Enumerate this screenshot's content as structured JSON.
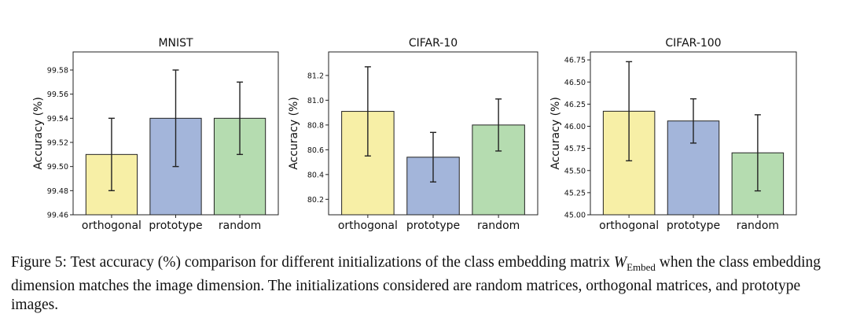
{
  "chart_data": [
    {
      "type": "bar",
      "title": "MNIST",
      "ylabel": "Accuracy (%)",
      "categories": [
        "orthogonal",
        "prototype",
        "random"
      ],
      "values": [
        99.51,
        99.54,
        99.54
      ],
      "errors": [
        0.03,
        0.04,
        0.03
      ],
      "ylim": [
        99.46,
        99.595
      ],
      "yticks": [
        99.46,
        99.48,
        99.5,
        99.52,
        99.54,
        99.56,
        99.58
      ],
      "tick_labels": [
        "99.46",
        "99.48",
        "99.50",
        "99.52",
        "99.54",
        "99.56",
        "99.58"
      ]
    },
    {
      "type": "bar",
      "title": "CIFAR-10",
      "ylabel": "Accuracy (%)",
      "categories": [
        "orthogonal",
        "prototype",
        "random"
      ],
      "values": [
        80.91,
        80.54,
        80.8
      ],
      "errors": [
        0.36,
        0.2,
        0.21
      ],
      "ylim": [
        80.075,
        81.39
      ],
      "yticks": [
        80.2,
        80.4,
        80.6,
        80.8,
        81.0,
        81.2
      ],
      "tick_labels": [
        "80.2",
        "80.4",
        "80.6",
        "80.8",
        "81.0",
        "81.2"
      ]
    },
    {
      "type": "bar",
      "title": "CIFAR-100",
      "ylabel": "Accuracy (%)",
      "categories": [
        "orthogonal",
        "prototype",
        "random"
      ],
      "values": [
        46.17,
        46.06,
        45.7
      ],
      "errors": [
        0.56,
        0.25,
        0.43
      ],
      "ylim": [
        45.0,
        46.84
      ],
      "yticks": [
        45.0,
        45.25,
        45.5,
        45.75,
        46.0,
        46.25,
        46.5,
        46.75
      ],
      "tick_labels": [
        "45.00",
        "45.25",
        "45.50",
        "45.75",
        "46.00",
        "46.25",
        "46.50",
        "46.75"
      ]
    }
  ],
  "colors": {
    "orthogonal": "#f7efa6",
    "prototype": "#a3b5da",
    "random": "#b5dcb0",
    "edge": "#222222"
  },
  "caption": {
    "prefix": "Figure 5:  Test accuracy (%) comparison for different initializations of the class embedding matrix ",
    "symbol": "W",
    "subscript": "Embed",
    "suffix": " when the class embedding dimension matches the image dimension.  The initializations considered are random matrices, orthogonal matrices, and prototype images."
  }
}
